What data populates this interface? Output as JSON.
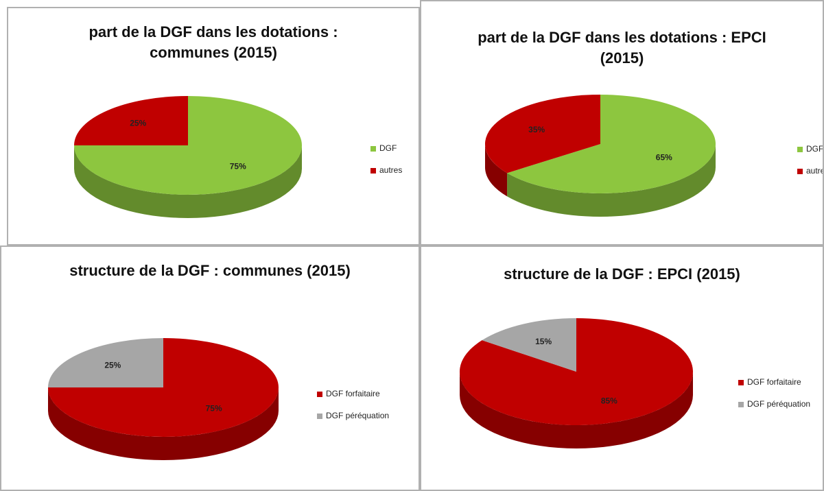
{
  "chart_data": [
    {
      "type": "pie",
      "title": "part de la DGF dans les dotations : communes (2015)",
      "categories": [
        "DGF",
        "autres"
      ],
      "values": [
        75,
        25
      ],
      "value_labels": [
        "75%",
        "25%"
      ],
      "colors": [
        "#8dc63f",
        "#c00000"
      ],
      "legend": "right"
    },
    {
      "type": "pie",
      "title": "part de la DGF dans les dotations : EPCI (2015)",
      "categories": [
        "DGF",
        "autres"
      ],
      "values": [
        65,
        35
      ],
      "value_labels": [
        "65%",
        "35%"
      ],
      "colors": [
        "#8dc63f",
        "#c00000"
      ],
      "legend": "right"
    },
    {
      "type": "pie",
      "title": "structure de la DGF : communes (2015)",
      "categories": [
        "DGF forfaitaire",
        "DGF péréquation"
      ],
      "values": [
        75,
        25
      ],
      "value_labels": [
        "75%",
        "25%"
      ],
      "colors": [
        "#c00000",
        "#a6a6a6"
      ],
      "legend": "right"
    },
    {
      "type": "pie",
      "title": "structure de la DGF : EPCI (2015)",
      "categories": [
        "DGF forfaitaire",
        "DGF péréquation"
      ],
      "values": [
        85,
        15
      ],
      "value_labels": [
        "85%",
        "15%"
      ],
      "colors": [
        "#c00000",
        "#a6a6a6"
      ],
      "legend": "right"
    }
  ]
}
